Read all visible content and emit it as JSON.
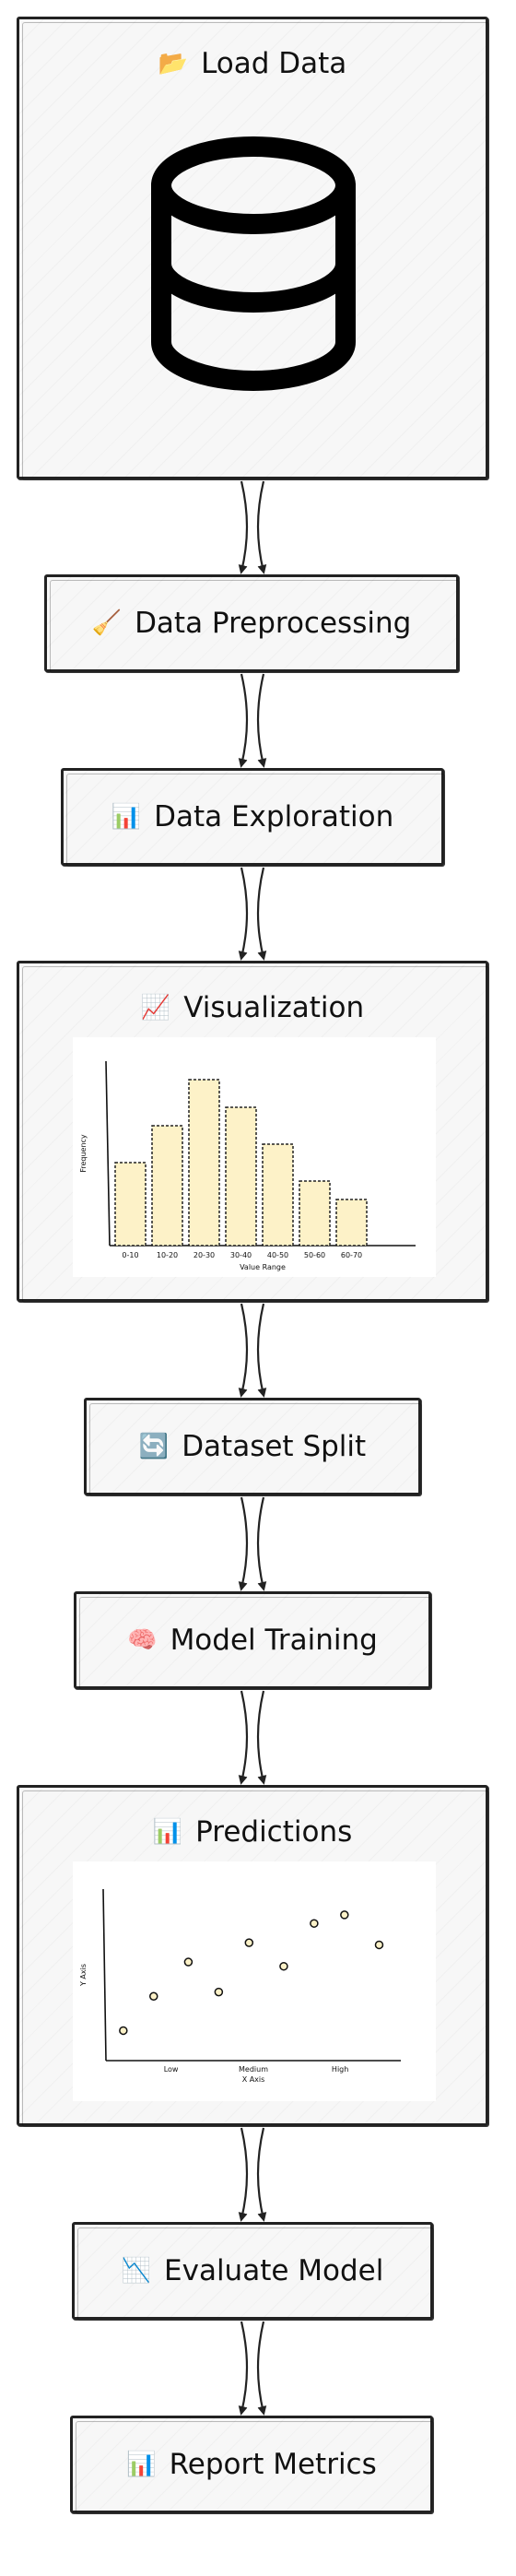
{
  "steps": [
    {
      "label": "Load Data",
      "icon": "📂",
      "icon_name": "folder-icon"
    },
    {
      "label": "Data Preprocessing",
      "icon": "🧹",
      "icon_name": "broom-icon"
    },
    {
      "label": "Data Exploration",
      "icon": "📊",
      "icon_name": "bar-chart-icon"
    },
    {
      "label": "Visualization",
      "icon": "📈",
      "icon_name": "line-chart-icon"
    },
    {
      "label": "Dataset Split",
      "icon": "🔄",
      "icon_name": "cycle-icon"
    },
    {
      "label": "Model Training",
      "icon": "🧠",
      "icon_name": "brain-icon"
    },
    {
      "label": "Predictions",
      "icon": "📊",
      "icon_name": "bar-chart-icon"
    },
    {
      "label": "Evaluate Model",
      "icon": "📉",
      "icon_name": "chart-decreasing-icon"
    },
    {
      "label": "Report Metrics",
      "icon": "📊",
      "icon_name": "bar-chart-icon"
    }
  ],
  "chart_data": [
    {
      "type": "bar",
      "categories": [
        "0-10",
        "10-20",
        "20-30",
        "30-40",
        "40-50",
        "50-60",
        "60-70"
      ],
      "values": [
        9,
        13,
        18,
        15,
        11,
        7,
        5
      ],
      "xlabel": "Value Range",
      "ylabel": "Frequency",
      "ylim": [
        0,
        20
      ],
      "bar_color": "#fdf2c8"
    },
    {
      "type": "scatter",
      "x_categories": [
        "Low",
        "Medium",
        "High"
      ],
      "x": [
        0.2,
        0.55,
        0.95,
        1.3,
        1.65,
        2.05,
        2.4,
        2.75,
        3.15
      ],
      "y": [
        1.4,
        3.0,
        4.6,
        3.2,
        5.5,
        4.4,
        6.4,
        6.8,
        5.4
      ],
      "xlim": [
        0,
        3.4
      ],
      "ylim": [
        0,
        8
      ],
      "xlabel": "X Axis",
      "ylabel": "Y Axis",
      "point_color": "#fdf2c8"
    }
  ]
}
